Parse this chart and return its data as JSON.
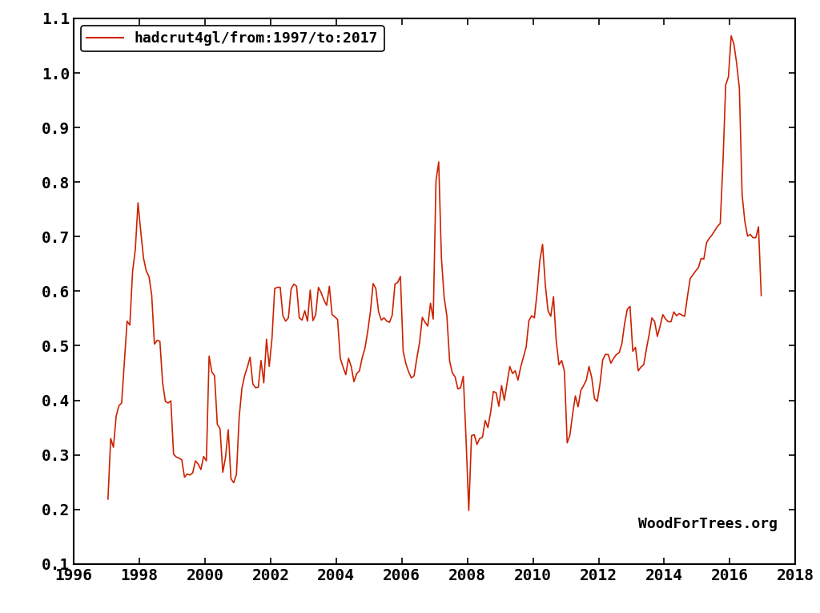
{
  "legend_label": "hadcrut4gl/from:1997/to:2017",
  "line_color": "#cc2200",
  "watermark": "WoodForTrees.org",
  "xlim": [
    1996,
    2018
  ],
  "ylim": [
    0.1,
    1.1
  ],
  "xticks": [
    1996,
    1998,
    2000,
    2002,
    2004,
    2006,
    2008,
    2010,
    2012,
    2014,
    2016,
    2018
  ],
  "yticks": [
    0.1,
    0.2,
    0.3,
    0.4,
    0.5,
    0.6,
    0.7,
    0.8,
    0.9,
    1.0,
    1.1
  ],
  "background_color": "#ffffff",
  "data": [
    [
      1997.042,
      0.219
    ],
    [
      1997.125,
      0.33
    ],
    [
      1997.208,
      0.314
    ],
    [
      1997.292,
      0.371
    ],
    [
      1997.375,
      0.39
    ],
    [
      1997.458,
      0.395
    ],
    [
      1997.542,
      0.471
    ],
    [
      1997.625,
      0.545
    ],
    [
      1997.708,
      0.538
    ],
    [
      1997.792,
      0.636
    ],
    [
      1997.875,
      0.676
    ],
    [
      1997.958,
      0.762
    ],
    [
      1998.042,
      0.709
    ],
    [
      1998.125,
      0.661
    ],
    [
      1998.208,
      0.637
    ],
    [
      1998.292,
      0.627
    ],
    [
      1998.375,
      0.593
    ],
    [
      1998.458,
      0.503
    ],
    [
      1998.542,
      0.51
    ],
    [
      1998.625,
      0.508
    ],
    [
      1998.708,
      0.432
    ],
    [
      1998.792,
      0.398
    ],
    [
      1998.875,
      0.395
    ],
    [
      1998.958,
      0.399
    ],
    [
      1999.042,
      0.301
    ],
    [
      1999.125,
      0.296
    ],
    [
      1999.208,
      0.294
    ],
    [
      1999.292,
      0.291
    ],
    [
      1999.375,
      0.259
    ],
    [
      1999.458,
      0.265
    ],
    [
      1999.542,
      0.263
    ],
    [
      1999.625,
      0.267
    ],
    [
      1999.708,
      0.289
    ],
    [
      1999.792,
      0.283
    ],
    [
      1999.875,
      0.273
    ],
    [
      1999.958,
      0.297
    ],
    [
      2000.042,
      0.289
    ],
    [
      2000.125,
      0.481
    ],
    [
      2000.208,
      0.452
    ],
    [
      2000.292,
      0.445
    ],
    [
      2000.375,
      0.356
    ],
    [
      2000.458,
      0.348
    ],
    [
      2000.542,
      0.268
    ],
    [
      2000.625,
      0.295
    ],
    [
      2000.708,
      0.346
    ],
    [
      2000.792,
      0.256
    ],
    [
      2000.875,
      0.249
    ],
    [
      2000.958,
      0.264
    ],
    [
      2001.042,
      0.369
    ],
    [
      2001.125,
      0.422
    ],
    [
      2001.208,
      0.445
    ],
    [
      2001.292,
      0.461
    ],
    [
      2001.375,
      0.479
    ],
    [
      2001.458,
      0.43
    ],
    [
      2001.542,
      0.423
    ],
    [
      2001.625,
      0.424
    ],
    [
      2001.708,
      0.473
    ],
    [
      2001.792,
      0.432
    ],
    [
      2001.875,
      0.512
    ],
    [
      2001.958,
      0.462
    ],
    [
      2002.042,
      0.513
    ],
    [
      2002.125,
      0.605
    ],
    [
      2002.208,
      0.607
    ],
    [
      2002.292,
      0.607
    ],
    [
      2002.375,
      0.555
    ],
    [
      2002.458,
      0.545
    ],
    [
      2002.542,
      0.551
    ],
    [
      2002.625,
      0.604
    ],
    [
      2002.708,
      0.613
    ],
    [
      2002.792,
      0.609
    ],
    [
      2002.875,
      0.551
    ],
    [
      2002.958,
      0.547
    ],
    [
      2003.042,
      0.564
    ],
    [
      2003.125,
      0.545
    ],
    [
      2003.208,
      0.602
    ],
    [
      2003.292,
      0.546
    ],
    [
      2003.375,
      0.557
    ],
    [
      2003.458,
      0.607
    ],
    [
      2003.542,
      0.597
    ],
    [
      2003.625,
      0.584
    ],
    [
      2003.708,
      0.574
    ],
    [
      2003.792,
      0.609
    ],
    [
      2003.875,
      0.557
    ],
    [
      2003.958,
      0.553
    ],
    [
      2004.042,
      0.548
    ],
    [
      2004.125,
      0.477
    ],
    [
      2004.208,
      0.461
    ],
    [
      2004.292,
      0.447
    ],
    [
      2004.375,
      0.477
    ],
    [
      2004.458,
      0.462
    ],
    [
      2004.542,
      0.434
    ],
    [
      2004.625,
      0.449
    ],
    [
      2004.708,
      0.454
    ],
    [
      2004.792,
      0.478
    ],
    [
      2004.875,
      0.495
    ],
    [
      2004.958,
      0.525
    ],
    [
      2005.042,
      0.562
    ],
    [
      2005.125,
      0.614
    ],
    [
      2005.208,
      0.605
    ],
    [
      2005.292,
      0.562
    ],
    [
      2005.375,
      0.547
    ],
    [
      2005.458,
      0.551
    ],
    [
      2005.542,
      0.545
    ],
    [
      2005.625,
      0.543
    ],
    [
      2005.708,
      0.556
    ],
    [
      2005.792,
      0.613
    ],
    [
      2005.875,
      0.616
    ],
    [
      2005.958,
      0.627
    ],
    [
      2006.042,
      0.49
    ],
    [
      2006.125,
      0.467
    ],
    [
      2006.208,
      0.452
    ],
    [
      2006.292,
      0.441
    ],
    [
      2006.375,
      0.445
    ],
    [
      2006.458,
      0.477
    ],
    [
      2006.542,
      0.506
    ],
    [
      2006.625,
      0.552
    ],
    [
      2006.708,
      0.543
    ],
    [
      2006.792,
      0.536
    ],
    [
      2006.875,
      0.578
    ],
    [
      2006.958,
      0.549
    ],
    [
      2007.042,
      0.802
    ],
    [
      2007.125,
      0.837
    ],
    [
      2007.208,
      0.661
    ],
    [
      2007.292,
      0.588
    ],
    [
      2007.375,
      0.554
    ],
    [
      2007.458,
      0.472
    ],
    [
      2007.542,
      0.45
    ],
    [
      2007.625,
      0.443
    ],
    [
      2007.708,
      0.421
    ],
    [
      2007.792,
      0.423
    ],
    [
      2007.875,
      0.444
    ],
    [
      2007.958,
      0.33
    ],
    [
      2008.042,
      0.198
    ],
    [
      2008.125,
      0.335
    ],
    [
      2008.208,
      0.337
    ],
    [
      2008.292,
      0.319
    ],
    [
      2008.375,
      0.33
    ],
    [
      2008.458,
      0.332
    ],
    [
      2008.542,
      0.363
    ],
    [
      2008.625,
      0.35
    ],
    [
      2008.708,
      0.378
    ],
    [
      2008.792,
      0.416
    ],
    [
      2008.875,
      0.414
    ],
    [
      2008.958,
      0.389
    ],
    [
      2009.042,
      0.427
    ],
    [
      2009.125,
      0.4
    ],
    [
      2009.208,
      0.431
    ],
    [
      2009.292,
      0.462
    ],
    [
      2009.375,
      0.449
    ],
    [
      2009.458,
      0.454
    ],
    [
      2009.542,
      0.437
    ],
    [
      2009.625,
      0.461
    ],
    [
      2009.708,
      0.479
    ],
    [
      2009.792,
      0.498
    ],
    [
      2009.875,
      0.546
    ],
    [
      2009.958,
      0.555
    ],
    [
      2010.042,
      0.551
    ],
    [
      2010.125,
      0.598
    ],
    [
      2010.208,
      0.656
    ],
    [
      2010.292,
      0.686
    ],
    [
      2010.375,
      0.612
    ],
    [
      2010.458,
      0.564
    ],
    [
      2010.542,
      0.554
    ],
    [
      2010.625,
      0.59
    ],
    [
      2010.708,
      0.509
    ],
    [
      2010.792,
      0.465
    ],
    [
      2010.875,
      0.473
    ],
    [
      2010.958,
      0.453
    ],
    [
      2011.042,
      0.322
    ],
    [
      2011.125,
      0.336
    ],
    [
      2011.208,
      0.375
    ],
    [
      2011.292,
      0.408
    ],
    [
      2011.375,
      0.388
    ],
    [
      2011.458,
      0.418
    ],
    [
      2011.542,
      0.427
    ],
    [
      2011.625,
      0.437
    ],
    [
      2011.708,
      0.462
    ],
    [
      2011.792,
      0.441
    ],
    [
      2011.875,
      0.403
    ],
    [
      2011.958,
      0.398
    ],
    [
      2012.042,
      0.43
    ],
    [
      2012.125,
      0.474
    ],
    [
      2012.208,
      0.484
    ],
    [
      2012.292,
      0.484
    ],
    [
      2012.375,
      0.468
    ],
    [
      2012.458,
      0.477
    ],
    [
      2012.542,
      0.484
    ],
    [
      2012.625,
      0.487
    ],
    [
      2012.708,
      0.503
    ],
    [
      2012.792,
      0.54
    ],
    [
      2012.875,
      0.567
    ],
    [
      2012.958,
      0.572
    ],
    [
      2013.042,
      0.49
    ],
    [
      2013.125,
      0.497
    ],
    [
      2013.208,
      0.454
    ],
    [
      2013.292,
      0.461
    ],
    [
      2013.375,
      0.465
    ],
    [
      2013.458,
      0.494
    ],
    [
      2013.542,
      0.521
    ],
    [
      2013.625,
      0.551
    ],
    [
      2013.708,
      0.544
    ],
    [
      2013.792,
      0.517
    ],
    [
      2013.875,
      0.536
    ],
    [
      2013.958,
      0.557
    ],
    [
      2014.042,
      0.549
    ],
    [
      2014.125,
      0.544
    ],
    [
      2014.208,
      0.544
    ],
    [
      2014.292,
      0.562
    ],
    [
      2014.375,
      0.555
    ],
    [
      2014.458,
      0.559
    ],
    [
      2014.542,
      0.556
    ],
    [
      2014.625,
      0.554
    ],
    [
      2014.708,
      0.59
    ],
    [
      2014.792,
      0.623
    ],
    [
      2014.875,
      0.63
    ],
    [
      2014.958,
      0.637
    ],
    [
      2015.042,
      0.643
    ],
    [
      2015.125,
      0.66
    ],
    [
      2015.208,
      0.659
    ],
    [
      2015.292,
      0.689
    ],
    [
      2015.375,
      0.697
    ],
    [
      2015.458,
      0.703
    ],
    [
      2015.542,
      0.711
    ],
    [
      2015.625,
      0.719
    ],
    [
      2015.708,
      0.724
    ],
    [
      2015.792,
      0.836
    ],
    [
      2015.875,
      0.978
    ],
    [
      2015.958,
      0.993
    ],
    [
      2016.042,
      1.068
    ],
    [
      2016.125,
      1.053
    ],
    [
      2016.208,
      1.018
    ],
    [
      2016.292,
      0.972
    ],
    [
      2016.375,
      0.777
    ],
    [
      2016.458,
      0.728
    ],
    [
      2016.542,
      0.701
    ],
    [
      2016.625,
      0.704
    ],
    [
      2016.708,
      0.698
    ],
    [
      2016.792,
      0.698
    ],
    [
      2016.875,
      0.718
    ],
    [
      2016.958,
      0.592
    ]
  ]
}
